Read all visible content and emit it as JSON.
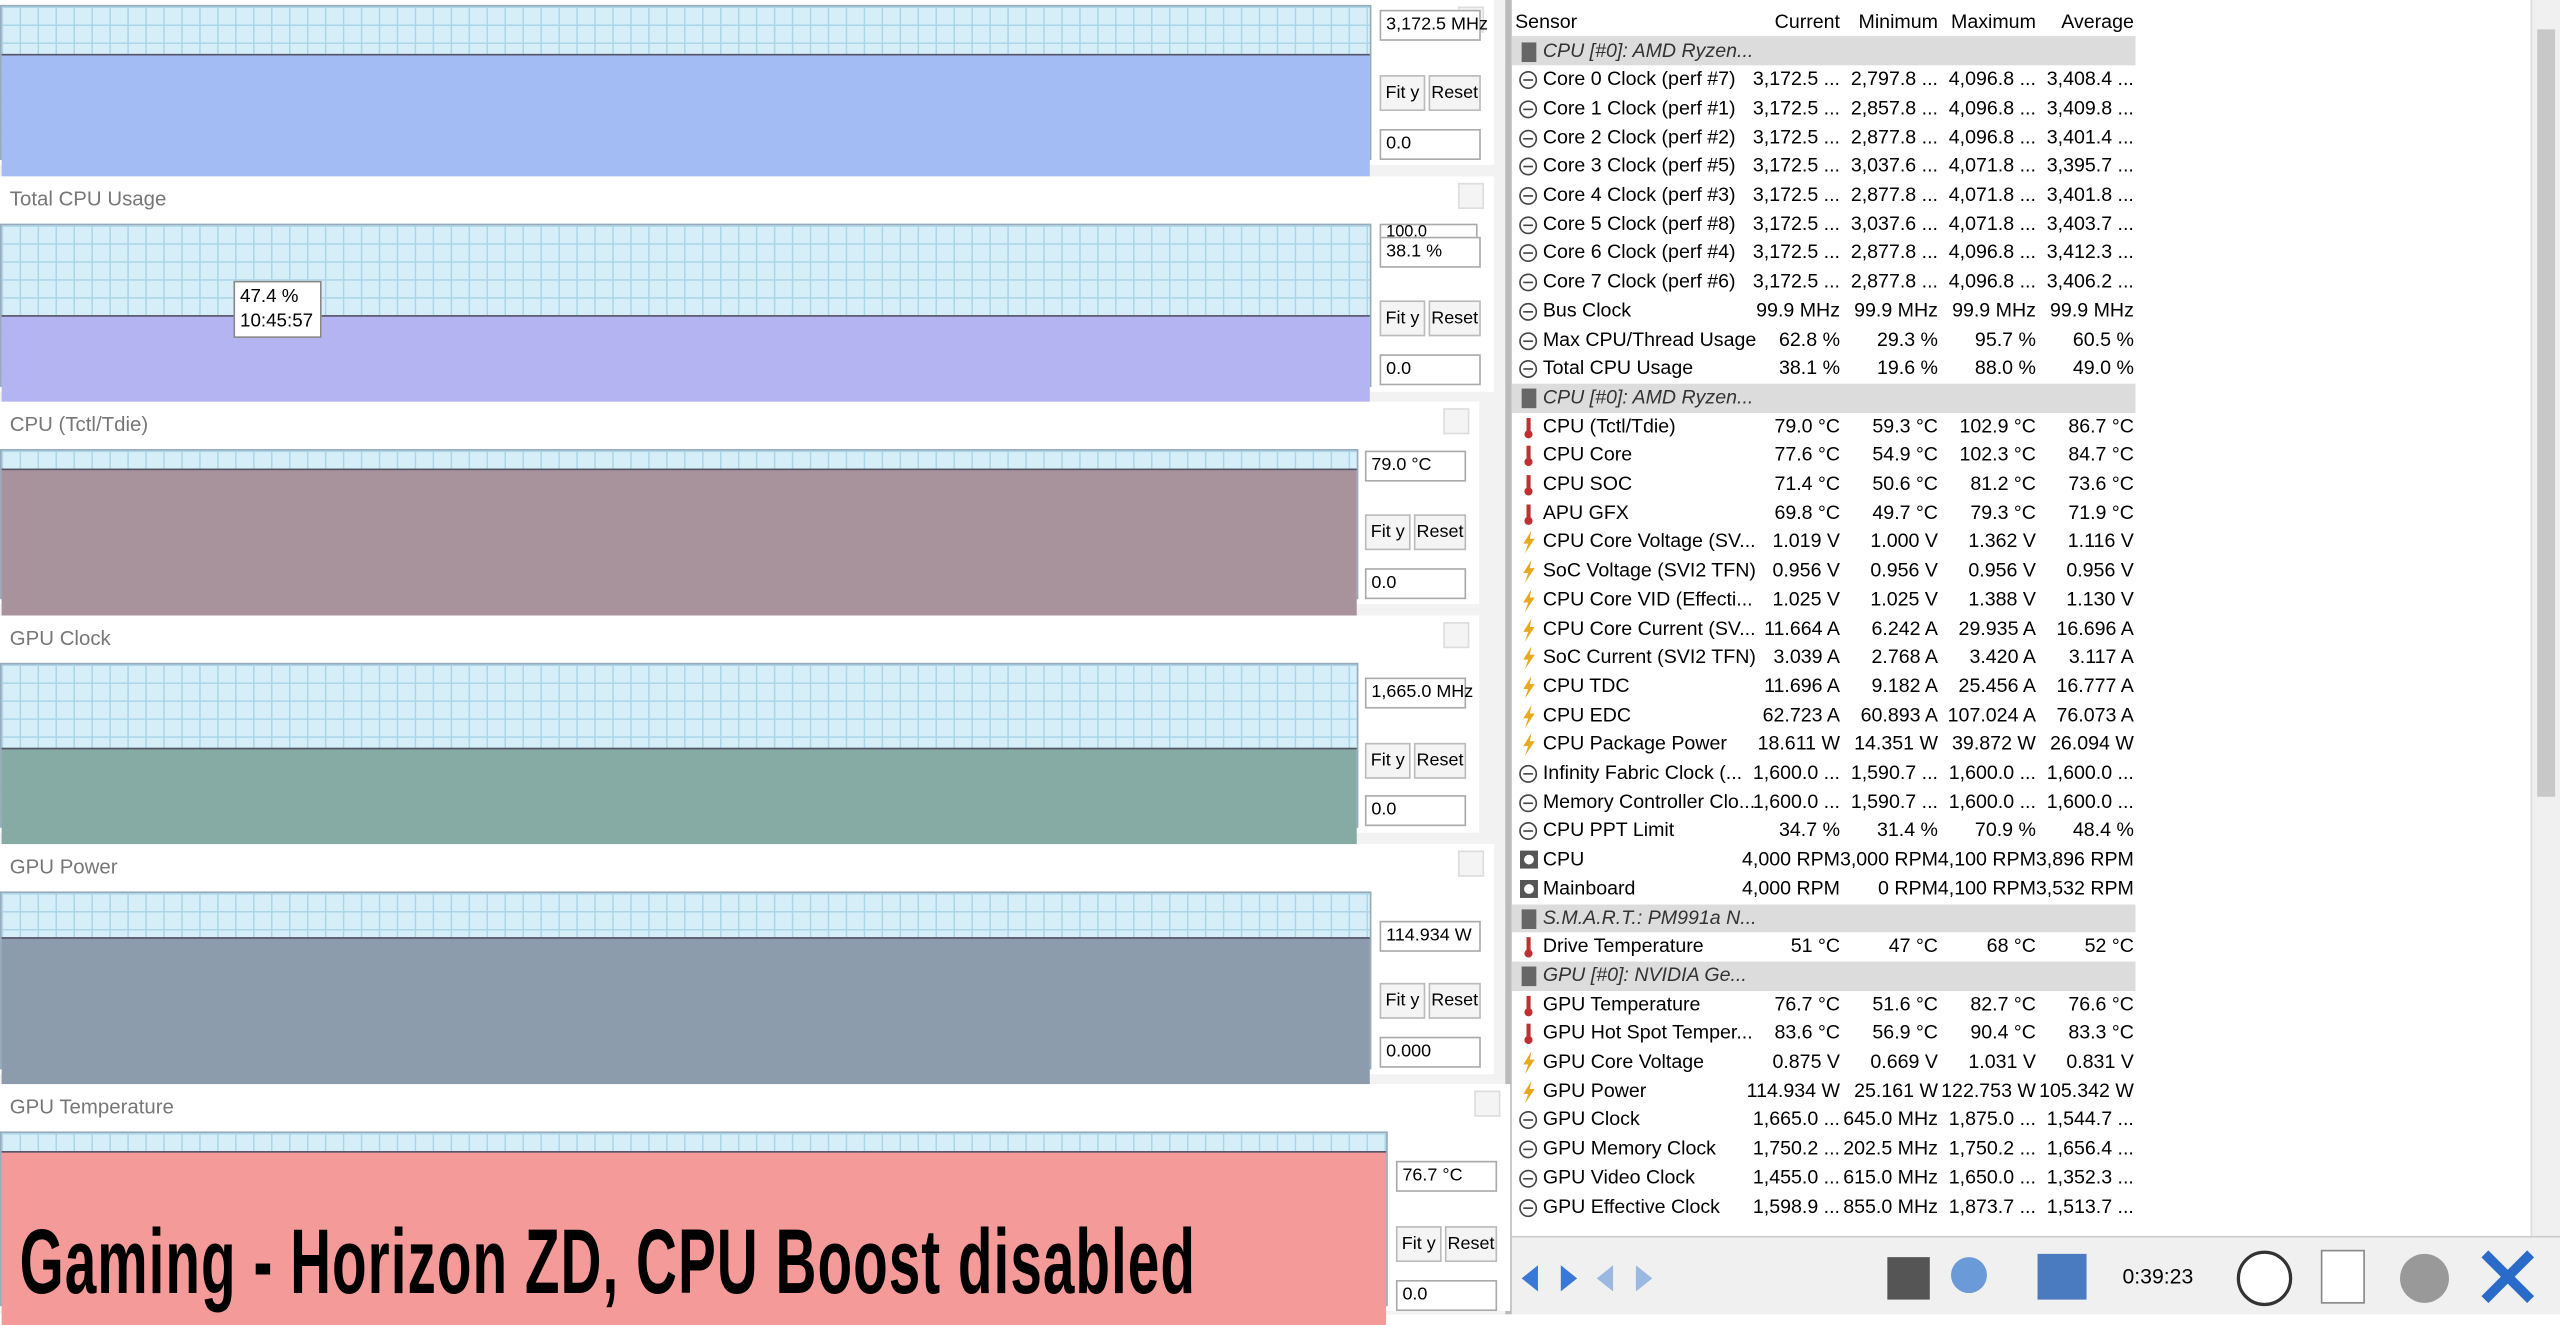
{
  "panels": [
    {
      "current": "3,172.5 MHz",
      "min": "0.0",
      "color": "#a4bcf4"
    },
    {
      "title": "Total CPU Usage",
      "top": "100.0",
      "current": "38.1 %",
      "min": "0.0",
      "color": "#b4b4f2"
    },
    {
      "title": "CPU (Tctl/Tdie)",
      "current": "79.0 °C",
      "min": "0.0",
      "color": "#a8929c"
    },
    {
      "title": "GPU Clock",
      "current": "1,665.0 MHz",
      "min": "0.0",
      "color": "#86aaa4"
    },
    {
      "title": "GPU Power",
      "current": "114.934 W",
      "min": "0.000",
      "color": "#8c9cac"
    },
    {
      "title": "GPU Temperature",
      "current": "76.7 °C",
      "min": "0.0",
      "color": "#f49a98"
    }
  ],
  "buttons": [
    "Fit y",
    "Reset"
  ],
  "tooltip": {
    "value": "47.4 %",
    "time": "10:45:57"
  },
  "caption": "Gaming - Horizon ZD, CPU Boost disabled",
  "sensor_table": {
    "columns": [
      "Sensor",
      "Current",
      "Minimum",
      "Maximum",
      "Average"
    ],
    "rows": [
      {
        "kind": "group",
        "label": "CPU [#0]: AMD Ryzen..."
      },
      {
        "kind": "clock",
        "label": "Core 0 Clock (perf #7)",
        "values": [
          "3,172.5 ...",
          "2,797.8 ...",
          "4,096.8 ...",
          "3,408.4 ..."
        ]
      },
      {
        "kind": "clock",
        "label": "Core 1 Clock (perf #1)",
        "values": [
          "3,172.5 ...",
          "2,857.8 ...",
          "4,096.8 ...",
          "3,409.8 ..."
        ]
      },
      {
        "kind": "clock",
        "label": "Core 2 Clock (perf #2)",
        "values": [
          "3,172.5 ...",
          "2,877.8 ...",
          "4,096.8 ...",
          "3,401.4 ..."
        ]
      },
      {
        "kind": "clock",
        "label": "Core 3 Clock (perf #5)",
        "values": [
          "3,172.5 ...",
          "3,037.6 ...",
          "4,071.8 ...",
          "3,395.7 ..."
        ]
      },
      {
        "kind": "clock",
        "label": "Core 4 Clock (perf #3)",
        "values": [
          "3,172.5 ...",
          "2,877.8 ...",
          "4,071.8 ...",
          "3,401.8 ..."
        ]
      },
      {
        "kind": "clock",
        "label": "Core 5 Clock (perf #8)",
        "values": [
          "3,172.5 ...",
          "3,037.6 ...",
          "4,071.8 ...",
          "3,403.7 ..."
        ]
      },
      {
        "kind": "clock",
        "label": "Core 6 Clock (perf #4)",
        "values": [
          "3,172.5 ...",
          "2,877.8 ...",
          "4,096.8 ...",
          "3,412.3 ..."
        ]
      },
      {
        "kind": "clock",
        "label": "Core 7 Clock (perf #6)",
        "values": [
          "3,172.5 ...",
          "2,877.8 ...",
          "4,096.8 ...",
          "3,406.2 ..."
        ]
      },
      {
        "kind": "clock",
        "label": "Bus Clock",
        "values": [
          "99.9 MHz",
          "99.9 MHz",
          "99.9 MHz",
          "99.9 MHz"
        ]
      },
      {
        "kind": "clock",
        "label": "Max CPU/Thread Usage",
        "values": [
          "62.8 %",
          "29.3 %",
          "95.7 %",
          "60.5 %"
        ]
      },
      {
        "kind": "clock",
        "label": "Total CPU Usage",
        "values": [
          "38.1 %",
          "19.6 %",
          "88.0 %",
          "49.0 %"
        ]
      },
      {
        "kind": "group",
        "label": "CPU [#0]: AMD Ryzen..."
      },
      {
        "kind": "temp",
        "label": "CPU (Tctl/Tdie)",
        "values": [
          "79.0 °C",
          "59.3 °C",
          "102.9 °C",
          "86.7 °C"
        ]
      },
      {
        "kind": "temp",
        "label": "CPU Core",
        "values": [
          "77.6 °C",
          "54.9 °C",
          "102.3 °C",
          "84.7 °C"
        ]
      },
      {
        "kind": "temp",
        "label": "CPU SOC",
        "values": [
          "71.4 °C",
          "50.6 °C",
          "81.2 °C",
          "73.6 °C"
        ]
      },
      {
        "kind": "temp",
        "label": "APU GFX",
        "values": [
          "69.8 °C",
          "49.7 °C",
          "79.3 °C",
          "71.9 °C"
        ]
      },
      {
        "kind": "power",
        "label": "CPU Core Voltage (SV...",
        "values": [
          "1.019 V",
          "1.000 V",
          "1.362 V",
          "1.116 V"
        ]
      },
      {
        "kind": "power",
        "label": "SoC Voltage (SVI2 TFN)",
        "values": [
          "0.956 V",
          "0.956 V",
          "0.956 V",
          "0.956 V"
        ]
      },
      {
        "kind": "power",
        "label": "CPU Core VID (Effecti...",
        "values": [
          "1.025 V",
          "1.025 V",
          "1.388 V",
          "1.130 V"
        ]
      },
      {
        "kind": "power",
        "label": "CPU Core Current (SV...",
        "values": [
          "11.664 A",
          "6.242 A",
          "29.935 A",
          "16.696 A"
        ]
      },
      {
        "kind": "power",
        "label": "SoC Current (SVI2 TFN)",
        "values": [
          "3.039 A",
          "2.768 A",
          "3.420 A",
          "3.117 A"
        ]
      },
      {
        "kind": "power",
        "label": "CPU TDC",
        "values": [
          "11.696 A",
          "9.182 A",
          "25.456 A",
          "16.777 A"
        ]
      },
      {
        "kind": "power",
        "label": "CPU EDC",
        "values": [
          "62.723 A",
          "60.893 A",
          "107.024 A",
          "76.073 A"
        ]
      },
      {
        "kind": "power",
        "label": "CPU Package Power",
        "values": [
          "18.611 W",
          "14.351 W",
          "39.872 W",
          "26.094 W"
        ]
      },
      {
        "kind": "clock",
        "label": "Infinity Fabric Clock (...",
        "values": [
          "1,600.0 ...",
          "1,590.7 ...",
          "1,600.0 ...",
          "1,600.0 ..."
        ]
      },
      {
        "kind": "clock",
        "label": "Memory Controller Clo...",
        "values": [
          "1,600.0 ...",
          "1,590.7 ...",
          "1,600.0 ...",
          "1,600.0 ..."
        ]
      },
      {
        "kind": "clock",
        "label": "CPU PPT Limit",
        "values": [
          "34.7 %",
          "31.4 %",
          "70.9 %",
          "48.4 %"
        ]
      },
      {
        "kind": "fan",
        "label": "CPU",
        "values": [
          "4,000 RPM",
          "3,000 RPM",
          "4,100 RPM",
          "3,896 RPM"
        ]
      },
      {
        "kind": "fan",
        "label": "Mainboard",
        "values": [
          "4,000 RPM",
          "0 RPM",
          "4,100 RPM",
          "3,532 RPM"
        ]
      },
      {
        "kind": "group",
        "label": "S.M.A.R.T.: PM991a N..."
      },
      {
        "kind": "temp",
        "label": "Drive Temperature",
        "values": [
          "51 °C",
          "47 °C",
          "68 °C",
          "52 °C"
        ]
      },
      {
        "kind": "group",
        "label": "GPU [#0]: NVIDIA Ge..."
      },
      {
        "kind": "temp",
        "label": "GPU Temperature",
        "values": [
          "76.7 °C",
          "51.6 °C",
          "82.7 °C",
          "76.6 °C"
        ]
      },
      {
        "kind": "temp",
        "label": "GPU Hot Spot Temper...",
        "values": [
          "83.6 °C",
          "56.9 °C",
          "90.4 °C",
          "83.3 °C"
        ]
      },
      {
        "kind": "power",
        "label": "GPU Core Voltage",
        "values": [
          "0.875 V",
          "0.669 V",
          "1.031 V",
          "0.831 V"
        ]
      },
      {
        "kind": "power",
        "label": "GPU Power",
        "values": [
          "114.934 W",
          "25.161 W",
          "122.753 W",
          "105.342 W"
        ]
      },
      {
        "kind": "clock",
        "label": "GPU Clock",
        "values": [
          "1,665.0 ...",
          "645.0 MHz",
          "1,875.0 ...",
          "1,544.7 ..."
        ]
      },
      {
        "kind": "clock",
        "label": "GPU Memory Clock",
        "values": [
          "1,750.2 ...",
          "202.5 MHz",
          "1,750.2 ...",
          "1,656.4 ..."
        ]
      },
      {
        "kind": "clock",
        "label": "GPU Video Clock",
        "values": [
          "1,455.0 ...",
          "615.0 MHz",
          "1,650.0 ...",
          "1,352.3 ..."
        ]
      },
      {
        "kind": "clock",
        "label": "GPU Effective Clock",
        "values": [
          "1,598.9 ...",
          "855.0 MHz",
          "1,873.7 ...",
          "1,513.7 ..."
        ]
      }
    ]
  },
  "footer": {
    "elapsed": "0:39:23"
  }
}
